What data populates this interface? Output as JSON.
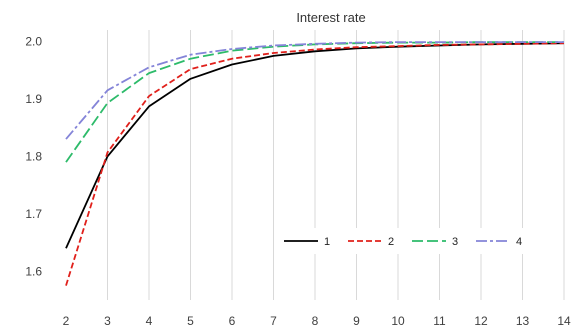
{
  "chart_data": {
    "type": "line",
    "title": "Interest rate",
    "xlabel": "",
    "ylabel": "",
    "x": [
      2,
      3,
      4,
      5,
      6,
      7,
      8,
      9,
      10,
      11,
      12,
      13,
      14
    ],
    "xlim": [
      2,
      14
    ],
    "ylim": [
      1.55,
      2.02
    ],
    "yticks": [
      1.6,
      1.7,
      1.8,
      1.9,
      2.0
    ],
    "ytick_labels": [
      "1.6",
      "1.7",
      "1.8",
      "1.9",
      "2.0"
    ],
    "xtick_labels": [
      "2",
      "3",
      "4",
      "5",
      "6",
      "7",
      "8",
      "9",
      "10",
      "11",
      "12",
      "13",
      "14"
    ],
    "grid": "vertical",
    "legend_placement": "center-right",
    "series": [
      {
        "name": "1",
        "color": "#000000",
        "dash": "solid",
        "values": [
          1.64,
          1.8,
          1.887,
          1.935,
          1.96,
          1.975,
          1.983,
          1.988,
          1.991,
          1.993,
          1.995,
          1.996,
          1.997
        ]
      },
      {
        "name": "2",
        "color": "#e0201b",
        "dash": "dashed",
        "values": [
          1.575,
          1.807,
          1.905,
          1.952,
          1.97,
          1.98,
          1.986,
          1.99,
          1.992,
          1.994,
          1.995,
          1.996,
          1.997
        ]
      },
      {
        "name": "3",
        "color": "#2dbb6a",
        "dash": "longdash",
        "values": [
          1.79,
          1.893,
          1.945,
          1.97,
          1.984,
          1.991,
          1.995,
          1.997,
          1.998,
          1.998,
          1.999,
          1.999,
          1.999
        ]
      },
      {
        "name": "4",
        "color": "#8484d8",
        "dash": "dashdot",
        "values": [
          1.83,
          1.915,
          1.955,
          1.977,
          1.987,
          1.993,
          1.996,
          1.998,
          1.999,
          1.999,
          1.999,
          1.999,
          1.999
        ]
      }
    ]
  }
}
